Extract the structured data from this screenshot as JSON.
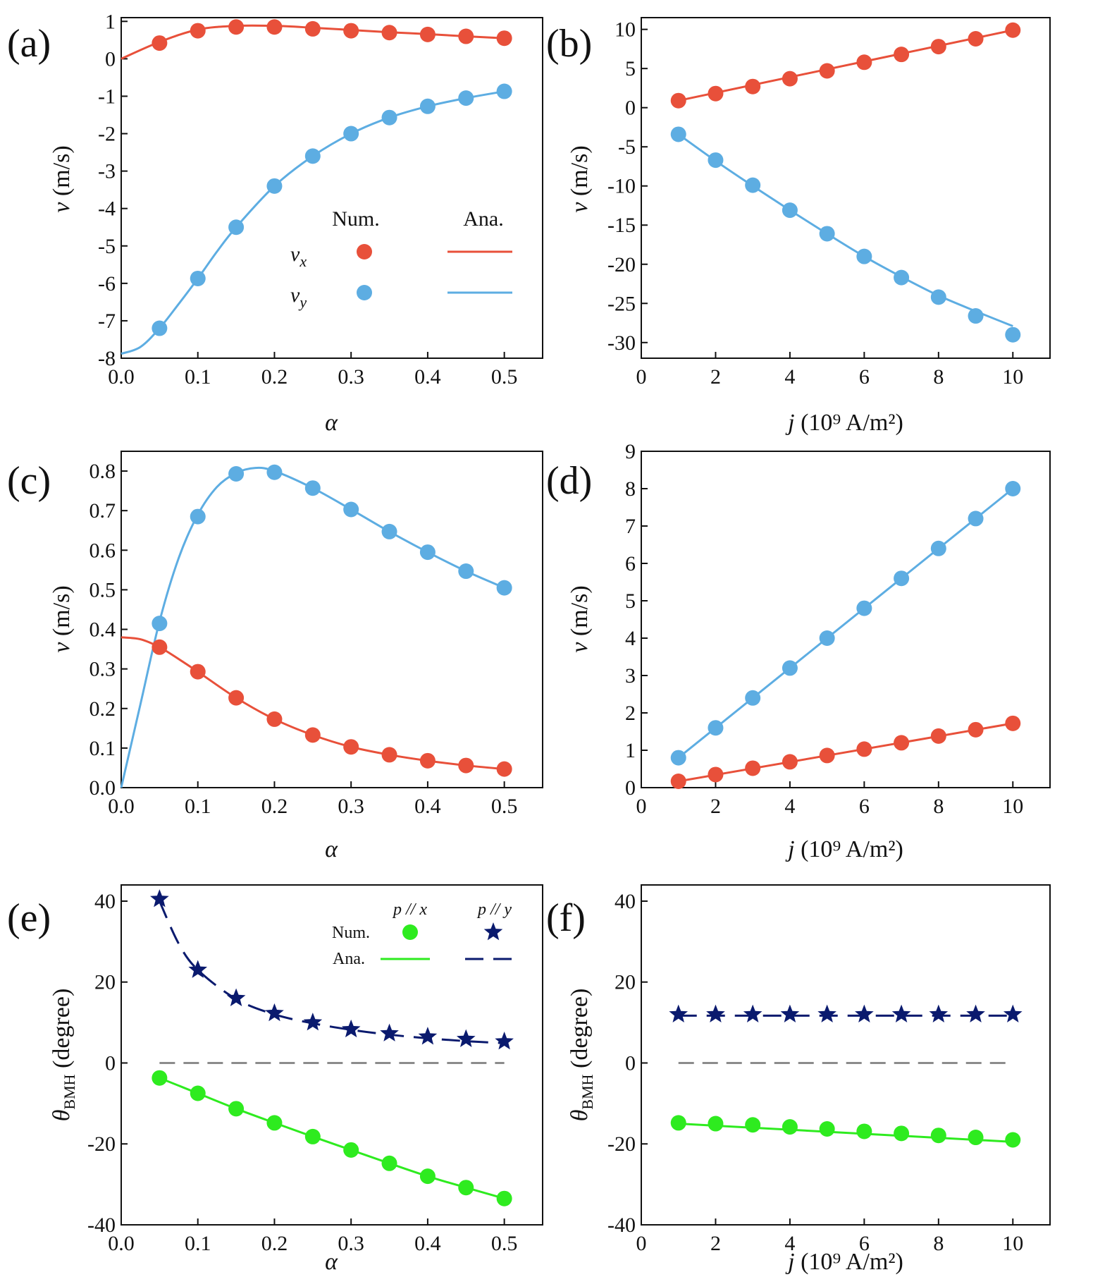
{
  "colors": {
    "red": "#E8503A",
    "blue": "#5DADE2",
    "green": "#2EEB1F",
    "navy": "#0A1A6E",
    "gray": "#8C8C8C"
  },
  "chart_data": [
    {
      "id": "a",
      "type": "line",
      "panel_label": "(a)",
      "xlabel": "α",
      "ylabel": "v (m/s)",
      "xlim": [
        0.0,
        0.55
      ],
      "ylim": [
        -8,
        1.1
      ],
      "xticks": [
        "0.0",
        "0.1",
        "0.2",
        "0.3",
        "0.4",
        "0.5"
      ],
      "yticks": [
        "1",
        "0",
        "-1",
        "-2",
        "-3",
        "-4",
        "-5",
        "-6",
        "-7",
        "-8"
      ],
      "legend": {
        "num_header": "Num.",
        "ana_header": "Ana.",
        "row1": "vx",
        "row2": "vy"
      },
      "series": [
        {
          "name": "vx",
          "color": "red",
          "points_x": [
            0.05,
            0.1,
            0.15,
            0.2,
            0.25,
            0.3,
            0.35,
            0.4,
            0.45,
            0.5
          ],
          "points_y": [
            0.42,
            0.75,
            0.85,
            0.85,
            0.8,
            0.75,
            0.7,
            0.65,
            0.6,
            0.55
          ],
          "line_x": [
            0,
            0.05,
            0.1,
            0.15,
            0.2,
            0.25,
            0.3,
            0.35,
            0.4,
            0.45,
            0.5
          ],
          "line_y": [
            0,
            0.45,
            0.78,
            0.88,
            0.88,
            0.83,
            0.77,
            0.71,
            0.66,
            0.6,
            0.55
          ]
        },
        {
          "name": "vy",
          "color": "blue",
          "points_x": [
            0.05,
            0.1,
            0.15,
            0.2,
            0.25,
            0.3,
            0.35,
            0.4,
            0.45,
            0.5
          ],
          "points_y": [
            -7.2,
            -5.87,
            -4.5,
            -3.4,
            -2.6,
            -2.0,
            -1.57,
            -1.27,
            -1.05,
            -0.87
          ],
          "line_x": [
            0,
            0.025,
            0.05,
            0.075,
            0.1,
            0.125,
            0.15,
            0.2,
            0.25,
            0.3,
            0.35,
            0.4,
            0.45,
            0.5
          ],
          "line_y": [
            -7.88,
            -7.7,
            -7.2,
            -6.55,
            -5.87,
            -5.15,
            -4.5,
            -3.4,
            -2.6,
            -2.0,
            -1.57,
            -1.27,
            -1.05,
            -0.87
          ]
        }
      ]
    },
    {
      "id": "b",
      "type": "line",
      "panel_label": "(b)",
      "xlabel": "j (10⁹ A/m²)",
      "ylabel": "v (m/s)",
      "xlim": [
        0,
        11
      ],
      "ylim": [
        -32,
        11.5
      ],
      "xticks": [
        "0",
        "2",
        "4",
        "6",
        "8",
        "10"
      ],
      "yticks": [
        "10",
        "5",
        "0",
        "-5",
        "-10",
        "-15",
        "-20",
        "-25",
        "-30"
      ],
      "series": [
        {
          "name": "vx",
          "color": "red",
          "points_x": [
            1,
            2,
            3,
            4,
            5,
            6,
            7,
            8,
            9,
            10
          ],
          "points_y": [
            0.9,
            1.8,
            2.7,
            3.7,
            4.7,
            5.8,
            6.8,
            7.8,
            8.8,
            9.9
          ],
          "line_x": [
            1,
            10
          ],
          "line_y": [
            0.9,
            9.9
          ]
        },
        {
          "name": "vy",
          "color": "blue",
          "points_x": [
            1,
            2,
            3,
            4,
            5,
            6,
            7,
            8,
            9,
            10
          ],
          "points_y": [
            -3.4,
            -6.7,
            -9.9,
            -13.1,
            -16.1,
            -19.0,
            -21.7,
            -24.2,
            -26.6,
            -29.0
          ],
          "line_x": [
            1,
            2,
            3,
            4,
            5,
            6,
            7,
            8,
            9,
            10
          ],
          "line_y": [
            -3.4,
            -6.8,
            -10.0,
            -13.1,
            -16.1,
            -19.0,
            -21.6,
            -24.0,
            -26.0,
            -27.9
          ]
        }
      ]
    },
    {
      "id": "c",
      "type": "line",
      "panel_label": "(c)",
      "xlabel": "α",
      "ylabel": "v (m/s)",
      "xlim": [
        0.0,
        0.55
      ],
      "ylim": [
        0.0,
        0.85
      ],
      "xticks": [
        "0.0",
        "0.1",
        "0.2",
        "0.3",
        "0.4",
        "0.5"
      ],
      "yticks": [
        "0.8",
        "0.7",
        "0.6",
        "0.5",
        "0.4",
        "0.3",
        "0.2",
        "0.1",
        "0.0"
      ],
      "series": [
        {
          "name": "vy",
          "color": "blue",
          "points_x": [
            0.05,
            0.1,
            0.15,
            0.2,
            0.25,
            0.3,
            0.35,
            0.4,
            0.45,
            0.5
          ],
          "points_y": [
            0.415,
            0.685,
            0.793,
            0.797,
            0.757,
            0.703,
            0.647,
            0.595,
            0.547,
            0.505
          ],
          "line_x": [
            0,
            0.025,
            0.05,
            0.075,
            0.1,
            0.125,
            0.15,
            0.175,
            0.2,
            0.25,
            0.3,
            0.35,
            0.4,
            0.45,
            0.5
          ],
          "line_y": [
            0,
            0.21,
            0.42,
            0.58,
            0.69,
            0.76,
            0.795,
            0.808,
            0.8,
            0.757,
            0.703,
            0.647,
            0.595,
            0.547,
            0.505
          ]
        },
        {
          "name": "vx",
          "color": "red",
          "points_x": [
            0.05,
            0.1,
            0.15,
            0.2,
            0.25,
            0.3,
            0.35,
            0.4,
            0.45,
            0.5
          ],
          "points_y": [
            0.355,
            0.293,
            0.227,
            0.173,
            0.133,
            0.103,
            0.083,
            0.068,
            0.056,
            0.047
          ],
          "line_x": [
            0,
            0.025,
            0.05,
            0.075,
            0.1,
            0.15,
            0.2,
            0.25,
            0.3,
            0.35,
            0.4,
            0.45,
            0.5
          ],
          "line_y": [
            0.38,
            0.375,
            0.355,
            0.325,
            0.293,
            0.227,
            0.173,
            0.133,
            0.103,
            0.083,
            0.068,
            0.056,
            0.047
          ]
        }
      ]
    },
    {
      "id": "d",
      "type": "line",
      "panel_label": "(d)",
      "xlabel": "j (10⁹ A/m²)",
      "ylabel": "v (m/s)",
      "xlim": [
        0,
        11
      ],
      "ylim": [
        0,
        9
      ],
      "xticks": [
        "0",
        "2",
        "4",
        "6",
        "8",
        "10"
      ],
      "yticks": [
        "9",
        "8",
        "7",
        "6",
        "5",
        "4",
        "3",
        "2",
        "1",
        "0"
      ],
      "series": [
        {
          "name": "vy",
          "color": "blue",
          "points_x": [
            1,
            2,
            3,
            4,
            5,
            6,
            7,
            8,
            9,
            10
          ],
          "points_y": [
            0.8,
            1.6,
            2.4,
            3.2,
            4.0,
            4.8,
            5.6,
            6.4,
            7.2,
            8.0
          ],
          "line_x": [
            1,
            10
          ],
          "line_y": [
            0.8,
            8.0
          ]
        },
        {
          "name": "vx",
          "color": "red",
          "points_x": [
            1,
            2,
            3,
            4,
            5,
            6,
            7,
            8,
            9,
            10
          ],
          "points_y": [
            0.17,
            0.35,
            0.52,
            0.69,
            0.86,
            1.03,
            1.2,
            1.38,
            1.55,
            1.72
          ],
          "line_x": [
            1,
            10
          ],
          "line_y": [
            0.17,
            1.72
          ]
        }
      ]
    },
    {
      "id": "e",
      "type": "line",
      "panel_label": "(e)",
      "xlabel": "α",
      "ylabel": "θBMH (degree)",
      "xlim": [
        0.0,
        0.55
      ],
      "ylim": [
        -40,
        44
      ],
      "xticks": [
        "0.0",
        "0.1",
        "0.2",
        "0.3",
        "0.4",
        "0.5"
      ],
      "yticks": [
        "40",
        "20",
        "0",
        "-20",
        "-40"
      ],
      "legend": {
        "col1": "p // x",
        "col2": "p // y",
        "row1": "Num.",
        "row2": "Ana."
      },
      "reference_line": {
        "y": 0,
        "x_from": 0.05,
        "x_to": 0.5
      },
      "series": [
        {
          "name": "p // y",
          "color": "navy",
          "marker": "star",
          "dashed": true,
          "points_x": [
            0.05,
            0.1,
            0.15,
            0.2,
            0.25,
            0.3,
            0.35,
            0.4,
            0.45,
            0.5
          ],
          "points_y": [
            40.5,
            23.0,
            16.0,
            12.3,
            10.0,
            8.3,
            7.3,
            6.5,
            5.9,
            5.3
          ],
          "line_x": [
            0.05,
            0.075,
            0.1,
            0.15,
            0.2,
            0.25,
            0.3,
            0.35,
            0.4,
            0.45,
            0.5
          ],
          "line_y": [
            40.0,
            29.5,
            23.0,
            15.8,
            12.0,
            9.8,
            8.2,
            7.0,
            6.1,
            5.4,
            4.9
          ]
        },
        {
          "name": "p // x",
          "color": "green",
          "marker": "circle",
          "dashed": false,
          "points_x": [
            0.05,
            0.1,
            0.15,
            0.2,
            0.25,
            0.3,
            0.35,
            0.4,
            0.45,
            0.5
          ],
          "points_y": [
            -3.7,
            -7.5,
            -11.3,
            -14.8,
            -18.2,
            -21.5,
            -24.8,
            -28.0,
            -30.8,
            -33.5
          ],
          "line_x": [
            0.05,
            0.1,
            0.15,
            0.2,
            0.25,
            0.3,
            0.35,
            0.4,
            0.45,
            0.5
          ],
          "line_y": [
            -3.7,
            -7.5,
            -11.3,
            -14.8,
            -18.2,
            -21.5,
            -24.8,
            -28.0,
            -30.8,
            -33.5
          ]
        }
      ]
    },
    {
      "id": "f",
      "type": "line",
      "panel_label": "(f)",
      "xlabel": "j (10⁹ A/m²)",
      "ylabel": "θBMH (degree)",
      "xlim": [
        0,
        11
      ],
      "ylim": [
        -40,
        44
      ],
      "xticks": [
        "0",
        "2",
        "4",
        "6",
        "8",
        "10"
      ],
      "yticks": [
        "40",
        "20",
        "0",
        "-20",
        "-40"
      ],
      "reference_line": {
        "y": 0,
        "x_from": 1,
        "x_to": 10
      },
      "series": [
        {
          "name": "p // y",
          "color": "navy",
          "marker": "star",
          "dashed": true,
          "points_x": [
            1,
            2,
            3,
            4,
            5,
            6,
            7,
            8,
            9,
            10
          ],
          "points_y": [
            12.0,
            12.0,
            12.0,
            12.0,
            12.0,
            12.0,
            12.0,
            12.0,
            12.0,
            12.0
          ],
          "line_x": [
            1,
            10
          ],
          "line_y": [
            11.7,
            11.7
          ]
        },
        {
          "name": "p // x",
          "color": "green",
          "marker": "circle",
          "dashed": false,
          "points_x": [
            1,
            2,
            3,
            4,
            5,
            6,
            7,
            8,
            9,
            10
          ],
          "points_y": [
            -14.8,
            -15.0,
            -15.3,
            -15.8,
            -16.3,
            -16.9,
            -17.4,
            -17.9,
            -18.4,
            -19.0
          ],
          "line_x": [
            1,
            10
          ],
          "line_y": [
            -15.0,
            -19.5
          ]
        }
      ]
    }
  ]
}
